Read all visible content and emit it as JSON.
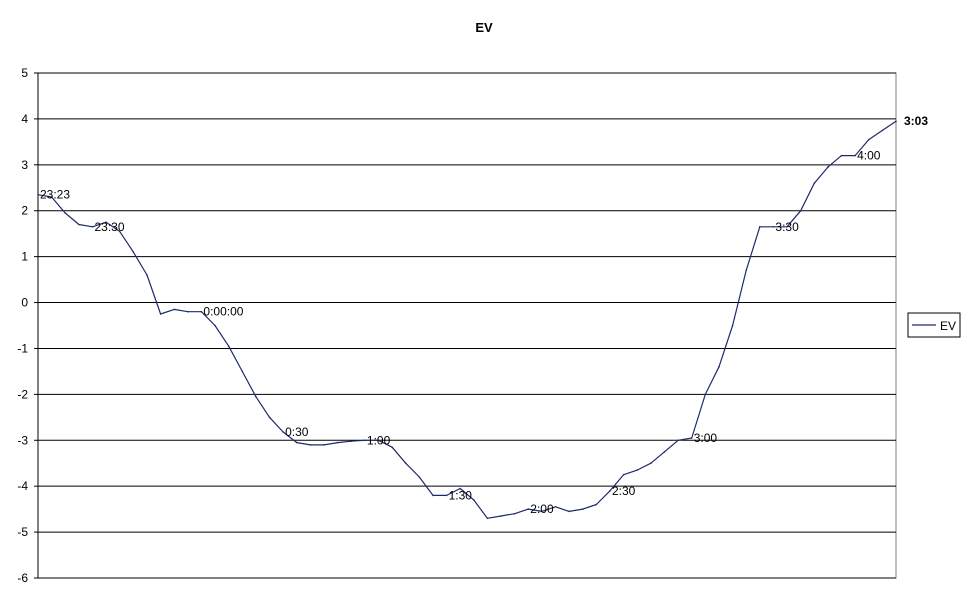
{
  "chart_data": {
    "type": "line",
    "title": "EV",
    "xlabel": "",
    "ylabel": "",
    "ylim": [
      -6,
      5
    ],
    "yticks": [
      "5",
      "4",
      "3",
      "2",
      "1",
      "0",
      "-1",
      "-2",
      "-3",
      "-4",
      "-5",
      "-6"
    ],
    "grid": true,
    "legend_position": "right",
    "series": [
      {
        "name": "EV",
        "color": "#1f2a6b",
        "points": [
          [
            "23:23",
            2.35
          ],
          [
            "23:25",
            2.3
          ],
          [
            "23:27",
            1.95
          ],
          [
            "23:28",
            1.7
          ],
          [
            "23:30",
            1.65
          ],
          [
            "23:35",
            1.75
          ],
          [
            "23:40",
            1.55
          ],
          [
            "23:45",
            1.1
          ],
          [
            "23:48",
            0.6
          ],
          [
            "23:50",
            -0.25
          ],
          [
            "23:53",
            -0.15
          ],
          [
            "23:57",
            -0.2
          ],
          [
            "0:00:00",
            -0.2
          ],
          [
            "0:05",
            -0.5
          ],
          [
            "0:10",
            -0.95
          ],
          [
            "0:15",
            -1.5
          ],
          [
            "0:20",
            -2.05
          ],
          [
            "0:25",
            -2.5
          ],
          [
            "0:30",
            -2.82
          ],
          [
            "0:35",
            -3.05
          ],
          [
            "0:40",
            -3.1
          ],
          [
            "0:45",
            -3.1
          ],
          [
            "0:50",
            -3.05
          ],
          [
            "0:55",
            -3.02
          ],
          [
            "1:00",
            -3.0
          ],
          [
            "1:05",
            -3.0
          ],
          [
            "1:10",
            -3.15
          ],
          [
            "1:15",
            -3.5
          ],
          [
            "1:20",
            -3.8
          ],
          [
            "1:25",
            -4.2
          ],
          [
            "1:30",
            -4.2
          ],
          [
            "1:35",
            -4.05
          ],
          [
            "1:40",
            -4.3
          ],
          [
            "1:45",
            -4.7
          ],
          [
            "1:50",
            -4.65
          ],
          [
            "1:55",
            -4.6
          ],
          [
            "2:00",
            -4.5
          ],
          [
            "2:05",
            -4.55
          ],
          [
            "2:10",
            -4.45
          ],
          [
            "2:15",
            -4.55
          ],
          [
            "2:20",
            -4.5
          ],
          [
            "2:25",
            -4.4
          ],
          [
            "2:30",
            -4.1
          ],
          [
            "2:35",
            -3.75
          ],
          [
            "2:40",
            -3.65
          ],
          [
            "2:45",
            -3.5
          ],
          [
            "2:50",
            -3.25
          ],
          [
            "2:55",
            -3.0
          ],
          [
            "3:00",
            -2.95
          ],
          [
            "3:05",
            -2.0
          ],
          [
            "3:10",
            -1.4
          ],
          [
            "3:15",
            -0.5
          ],
          [
            "3:20",
            0.7
          ],
          [
            "3:25",
            1.65
          ],
          [
            "3:30",
            1.65
          ],
          [
            "3:35",
            1.65
          ],
          [
            "3:40",
            2.0
          ],
          [
            "3:45",
            2.6
          ],
          [
            "3:50",
            2.95
          ],
          [
            "3:55",
            3.2
          ],
          [
            "4:00",
            3.2
          ],
          [
            "4:05",
            3.55
          ],
          [
            "4:10",
            3.75
          ],
          [
            "3:03",
            3.95
          ]
        ]
      }
    ],
    "annotations": [
      {
        "text": "23:23",
        "x_index": 0,
        "y": 2.35,
        "bold": false
      },
      {
        "text": "23:30",
        "x_index": 4,
        "y": 1.65,
        "bold": false
      },
      {
        "text": "0:00:00",
        "x_index": 12,
        "y": -0.2,
        "bold": false
      },
      {
        "text": "0:30",
        "x_index": 18,
        "y": -2.82,
        "bold": false
      },
      {
        "text": "1:00",
        "x_index": 24,
        "y": -3.0,
        "bold": false
      },
      {
        "text": "1:30",
        "x_index": 30,
        "y": -4.2,
        "bold": false
      },
      {
        "text": "2:00",
        "x_index": 36,
        "y": -4.5,
        "bold": false
      },
      {
        "text": "2:30",
        "x_index": 42,
        "y": -4.1,
        "bold": false
      },
      {
        "text": "3:00",
        "x_index": 48,
        "y": -2.95,
        "bold": false
      },
      {
        "text": "3:30",
        "x_index": 54,
        "y": 1.65,
        "bold": false
      },
      {
        "text": "4:00",
        "x_index": 60,
        "y": 3.2,
        "bold": false
      },
      {
        "text": "3:03",
        "x_index": 63,
        "y": 3.95,
        "bold": true
      }
    ]
  }
}
